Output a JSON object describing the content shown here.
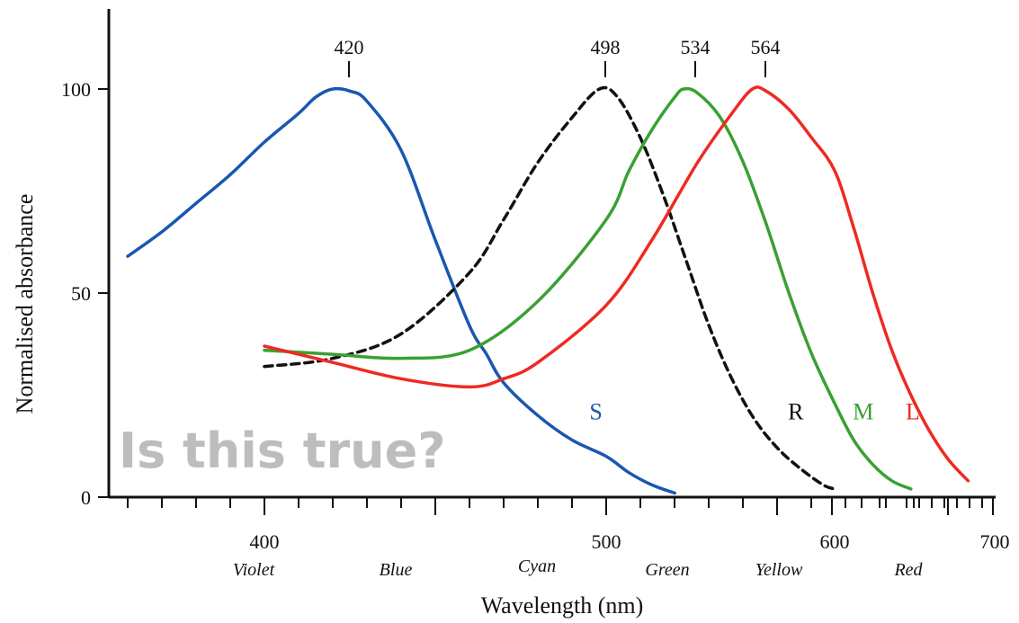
{
  "chart_data": {
    "type": "line",
    "title": "",
    "xlabel": "Wavelength (nm)",
    "ylabel": "Normalised absorbance",
    "xlim": [
      360,
      700
    ],
    "ylim": [
      0,
      100
    ],
    "x_ticks": [
      "400",
      "500",
      "600",
      "700"
    ],
    "y_ticks": [
      "0",
      "50",
      "100"
    ],
    "peaks": [
      {
        "label": "420",
        "x": 420
      },
      {
        "label": "498",
        "x": 498
      },
      {
        "label": "534",
        "x": 534
      },
      {
        "label": "564",
        "x": 564
      }
    ],
    "color_bands": [
      {
        "name": "Violet",
        "x": 395
      },
      {
        "name": "Blue",
        "x": 437
      },
      {
        "name": "Cyan",
        "x": 485
      },
      {
        "name": "Green",
        "x": 517
      },
      {
        "name": "Yellow",
        "x": 575
      },
      {
        "name": "Red",
        "x": 635
      }
    ],
    "series": [
      {
        "name": "S",
        "color": "#1a57b0",
        "dashed": false,
        "x": [
          360,
          370,
          380,
          390,
          400,
          410,
          415,
          420,
          425,
          430,
          440,
          450,
          460,
          465,
          470,
          480,
          490,
          500,
          510,
          520,
          530
        ],
        "y": [
          59,
          65,
          72,
          79,
          87,
          94,
          98,
          100,
          99.5,
          97,
          85,
          63,
          42,
          35,
          28,
          20,
          14,
          10,
          6,
          3,
          1
        ]
      },
      {
        "name": "R",
        "color": "#111111",
        "dashed": true,
        "x": [
          400,
          420,
          440,
          460,
          470,
          480,
          490,
          498,
          505,
          515,
          525,
          535,
          545,
          555,
          565,
          575,
          585,
          595,
          600
        ],
        "y": [
          32,
          34,
          40,
          55,
          68,
          82,
          93,
          100,
          98,
          88,
          74,
          58,
          42,
          29,
          19,
          12,
          7,
          3,
          2
        ]
      },
      {
        "name": "M",
        "color": "#3aa033",
        "dashed": false,
        "x": [
          400,
          420,
          440,
          460,
          480,
          500,
          510,
          520,
          530,
          534,
          540,
          550,
          560,
          570,
          580,
          590,
          600,
          610,
          620,
          630,
          640
        ],
        "y": [
          36,
          35,
          34,
          36,
          48,
          68,
          80,
          90,
          98,
          100,
          99,
          93,
          82,
          67,
          50,
          35,
          23,
          14,
          8,
          4,
          2
        ]
      },
      {
        "name": "L",
        "color": "#ee2a22",
        "dashed": false,
        "x": [
          400,
          420,
          440,
          460,
          470,
          480,
          500,
          520,
          540,
          555,
          564,
          570,
          580,
          590,
          600,
          610,
          620,
          630,
          640,
          650,
          660,
          670
        ],
        "y": [
          37,
          33,
          29,
          27,
          29,
          33,
          47,
          63,
          82,
          94,
          100,
          99.5,
          95,
          88,
          80,
          66,
          50,
          36,
          25,
          16,
          9,
          4
        ]
      }
    ],
    "curve_labels": [
      {
        "text": "S",
        "color": "#1a57b0",
        "x": 497,
        "y": 19
      },
      {
        "text": "R",
        "color": "#111111",
        "x": 583,
        "y": 19
      },
      {
        "text": "M",
        "color": "#3aa033",
        "x": 615,
        "y": 19
      },
      {
        "text": "L",
        "color": "#ee2a22",
        "x": 641,
        "y": 19
      }
    ]
  },
  "watermark": "Is this true?"
}
